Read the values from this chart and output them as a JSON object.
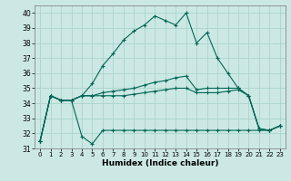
{
  "title": "",
  "xlabel": "Humidex (Indice chaleur)",
  "background_color": "#cce8e4",
  "grid_color": "#aad4cc",
  "line_color": "#006655",
  "xlim": [
    -0.5,
    23.5
  ],
  "ylim": [
    31,
    40.5
  ],
  "xticks": [
    0,
    1,
    2,
    3,
    4,
    5,
    6,
    7,
    8,
    9,
    10,
    11,
    12,
    13,
    14,
    15,
    16,
    17,
    18,
    19,
    20,
    21,
    22,
    23
  ],
  "yticks": [
    31,
    32,
    33,
    34,
    35,
    36,
    37,
    38,
    39,
    40
  ],
  "series": [
    [
      31.5,
      34.5,
      34.2,
      34.2,
      31.8,
      31.3,
      32.2,
      32.2,
      32.2,
      32.2,
      32.2,
      32.2,
      32.2,
      32.2,
      32.2,
      32.2,
      32.2,
      32.2,
      32.2,
      32.2,
      32.2,
      32.2,
      32.2,
      32.5
    ],
    [
      31.5,
      34.5,
      34.2,
      34.2,
      34.5,
      34.5,
      34.5,
      34.5,
      34.5,
      34.6,
      34.7,
      34.8,
      34.9,
      35.0,
      35.0,
      34.7,
      34.7,
      34.7,
      34.8,
      34.9,
      34.5,
      32.3,
      32.2,
      32.5
    ],
    [
      31.5,
      34.5,
      34.2,
      34.2,
      34.5,
      34.5,
      34.7,
      34.8,
      34.9,
      35.0,
      35.2,
      35.4,
      35.5,
      35.7,
      35.8,
      34.9,
      35.0,
      35.0,
      35.0,
      35.0,
      34.5,
      32.3,
      32.2,
      32.5
    ],
    [
      31.5,
      34.5,
      34.2,
      34.2,
      34.5,
      35.3,
      36.5,
      37.3,
      38.2,
      38.8,
      39.2,
      39.8,
      39.5,
      39.2,
      40.0,
      38.0,
      38.7,
      37.0,
      36.0,
      35.0,
      34.5,
      32.3,
      32.2,
      32.5
    ]
  ]
}
